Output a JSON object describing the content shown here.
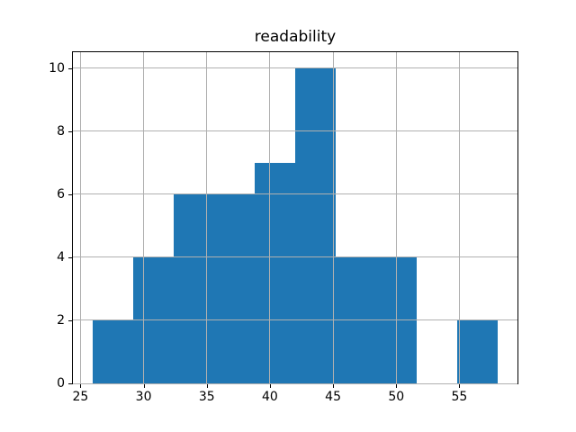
{
  "figure": {
    "background": "#ffffff"
  },
  "chart_data": {
    "type": "bar",
    "subtype": "histogram",
    "title": "readability",
    "xlabel": "",
    "ylabel": "",
    "bar_color": "#1f77b4",
    "grid": true,
    "grid_color": "#b0b0b0",
    "grid_above_bars": true,
    "bin_edges": [
      26.0,
      29.2,
      32.4,
      35.6,
      38.8,
      42.0,
      45.2,
      48.4,
      51.6,
      54.8,
      58.0
    ],
    "counts": [
      2,
      4,
      6,
      6,
      7,
      10,
      4,
      4,
      0,
      2
    ],
    "x_ticks": [
      25,
      30,
      35,
      40,
      45,
      50,
      55
    ],
    "y_ticks": [
      0,
      2,
      4,
      6,
      8,
      10
    ],
    "xlim": [
      24.4,
      59.6
    ],
    "ylim": [
      0,
      10.5
    ],
    "legend_position": "none"
  }
}
